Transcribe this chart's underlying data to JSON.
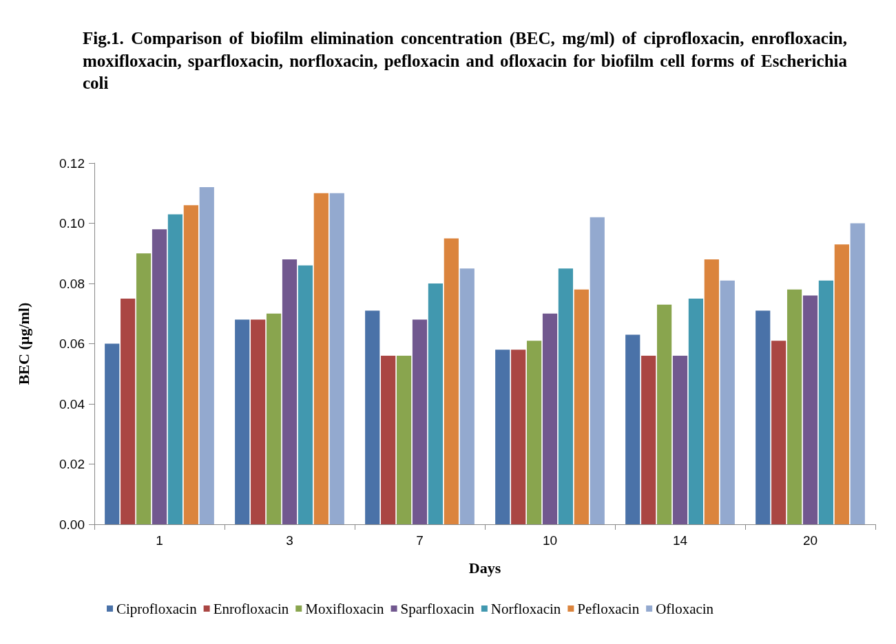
{
  "chart_data": {
    "type": "bar",
    "title": "Fig.1. Comparison of biofilm elimination concentration (BEC, mg/ml) of ciprofloxacin, enrofloxacin, moxifloxacin, sparfloxacin, norfloxacin, pefloxacin and ofloxacin for biofilm cell forms of Escherichia coli",
    "xlabel": "Days",
    "ylabel": "BEC (µg/ml)",
    "categories": [
      "1",
      "3",
      "7",
      "10",
      "14",
      "20"
    ],
    "series": [
      {
        "name": "Ciprofloxacin",
        "color": "#4a72a8",
        "values": [
          0.06,
          0.068,
          0.071,
          0.058,
          0.063,
          0.071
        ]
      },
      {
        "name": "Enrofloxacin",
        "color": "#aa4643",
        "values": [
          0.075,
          0.068,
          0.056,
          0.058,
          0.056,
          0.061
        ]
      },
      {
        "name": "Moxifloxacin",
        "color": "#89a54e",
        "values": [
          0.09,
          0.07,
          0.056,
          0.061,
          0.073,
          0.078
        ]
      },
      {
        "name": "Sparfloxacin",
        "color": "#71588f",
        "values": [
          0.098,
          0.088,
          0.068,
          0.07,
          0.056,
          0.076
        ]
      },
      {
        "name": "Norfloxacin",
        "color": "#4198af",
        "values": [
          0.103,
          0.086,
          0.08,
          0.085,
          0.075,
          0.081
        ]
      },
      {
        "name": "Pefloxacin",
        "color": "#db843d",
        "values": [
          0.106,
          0.11,
          0.095,
          0.078,
          0.088,
          0.093
        ]
      },
      {
        "name": "Ofloxacin",
        "color": "#93a9cf",
        "values": [
          0.112,
          0.11,
          0.085,
          0.102,
          0.081,
          0.1
        ]
      }
    ],
    "ylim": [
      0,
      0.12
    ],
    "yticks": [
      {
        "value": 0,
        "label": "0.00"
      },
      {
        "value": 0.02,
        "label": "0.02"
      },
      {
        "value": 0.04,
        "label": "0.04"
      },
      {
        "value": 0.06,
        "label": "0.06"
      },
      {
        "value": 0.08,
        "label": "0.08"
      },
      {
        "value": 0.1,
        "label": "0.10"
      },
      {
        "value": 0.12,
        "label": "0.12"
      }
    ],
    "grid": false,
    "legend": "bottom"
  }
}
